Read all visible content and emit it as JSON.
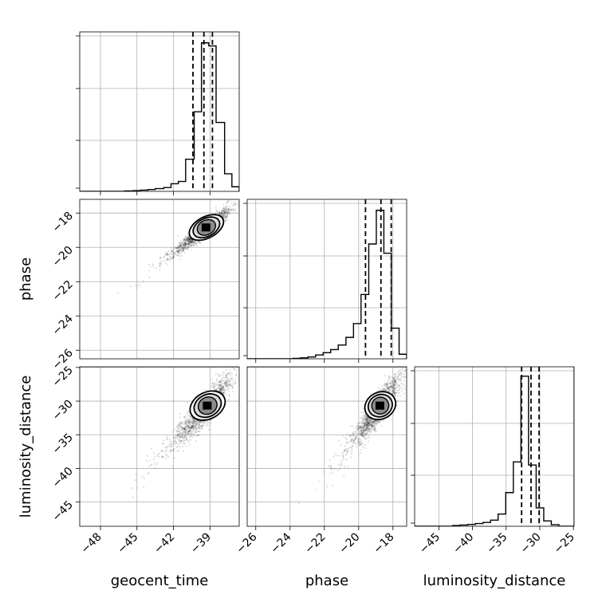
{
  "chart_data": {
    "type": "corner",
    "parameters": [
      "geocent_time",
      "phase",
      "luminosity_distance"
    ],
    "axis_labels": {
      "geocent_time": "geocent_time",
      "phase": "phase",
      "luminosity_distance": "luminosity_distance"
    },
    "ranges": {
      "geocent_time": [
        -49.7,
        -36.6
      ],
      "phase": [
        -26.5,
        -17.2
      ],
      "luminosity_distance": [
        -48.6,
        -24.9
      ]
    },
    "ticks": {
      "geocent_time": {
        "values": [
          -48,
          -45,
          -42,
          -39
        ],
        "labels": [
          "−48",
          "−45",
          "−42",
          "−39"
        ]
      },
      "phase": {
        "values": [
          -26,
          -24,
          -22,
          -20,
          -18
        ],
        "labels": [
          "−26",
          "−24",
          "−22",
          "−20",
          "−18"
        ]
      },
      "luminosity_distance": {
        "values": [
          -45,
          -40,
          -35,
          -30,
          -25
        ],
        "labels": [
          "−45",
          "−40",
          "−35",
          "−30",
          "−25"
        ]
      }
    },
    "quantiles": {
      "geocent_time": [
        -40.4,
        -39.5,
        -38.8
      ],
      "phase": [
        -19.6,
        -18.7,
        -18.1
      ],
      "luminosity_distance": [
        -32.7,
        -31.3,
        -30.1
      ]
    },
    "histograms": {
      "geocent_time": {
        "bin_edges": [
          -49.7,
          -49.1,
          -48.5,
          -47.8,
          -47.2,
          -46.6,
          -46.0,
          -45.3,
          -44.7,
          -44.1,
          -43.5,
          -42.8,
          -42.2,
          -41.6,
          -41.0,
          -40.3,
          -39.7,
          -39.1,
          -38.5,
          -37.8,
          -37.2,
          -36.6
        ],
        "counts": [
          0,
          0,
          0,
          0,
          0,
          0,
          0.003,
          0.005,
          0.008,
          0.012,
          0.018,
          0.025,
          0.05,
          0.065,
          0.21,
          0.52,
          0.97,
          0.95,
          0.45,
          0.115,
          0.03
        ]
      },
      "phase": {
        "bin_edges": [
          -26.5,
          -26.06,
          -25.61,
          -25.17,
          -24.73,
          -24.29,
          -23.84,
          -23.4,
          -22.96,
          -22.51,
          -22.07,
          -21.63,
          -21.19,
          -20.74,
          -20.3,
          -19.86,
          -19.41,
          -18.97,
          -18.53,
          -18.09,
          -17.64,
          -17.2
        ],
        "counts": [
          0,
          0,
          0,
          0,
          0,
          0,
          0.003,
          0.006,
          0.012,
          0.025,
          0.04,
          0.06,
          0.09,
          0.14,
          0.23,
          0.42,
          0.75,
          0.97,
          0.69,
          0.2,
          0.03
        ]
      },
      "luminosity_distance": {
        "bin_edges": [
          -48.6,
          -47.47,
          -46.34,
          -45.21,
          -44.09,
          -42.96,
          -41.83,
          -40.7,
          -39.57,
          -38.44,
          -37.31,
          -36.19,
          -35.06,
          -33.93,
          -32.8,
          -31.67,
          -30.54,
          -29.41,
          -28.29,
          -27.16,
          -26.03,
          -24.9
        ],
        "counts": [
          0,
          0,
          0,
          0,
          0,
          0.005,
          0.008,
          0.012,
          0.018,
          0.025,
          0.04,
          0.08,
          0.22,
          0.42,
          0.98,
          0.4,
          0.12,
          0.035,
          0.01,
          0,
          0
        ]
      }
    },
    "scatter": {
      "phase_vs_geocent_time": {
        "mean": [
          -39.4,
          -18.9
        ],
        "sd": [
          1.05,
          0.62
        ],
        "corr": 0.93,
        "n": 1500
      },
      "luminosity_distance_vs_geocent_time": {
        "mean": [
          -39.3,
          -30.9
        ],
        "sd": [
          1.05,
          2.3
        ],
        "corr": 0.88,
        "n": 1500
      },
      "luminosity_distance_vs_phase": {
        "mean": [
          -18.8,
          -30.9
        ],
        "sd": [
          0.62,
          2.3
        ],
        "corr": 0.88,
        "n": 1500
      }
    },
    "grid": true
  }
}
